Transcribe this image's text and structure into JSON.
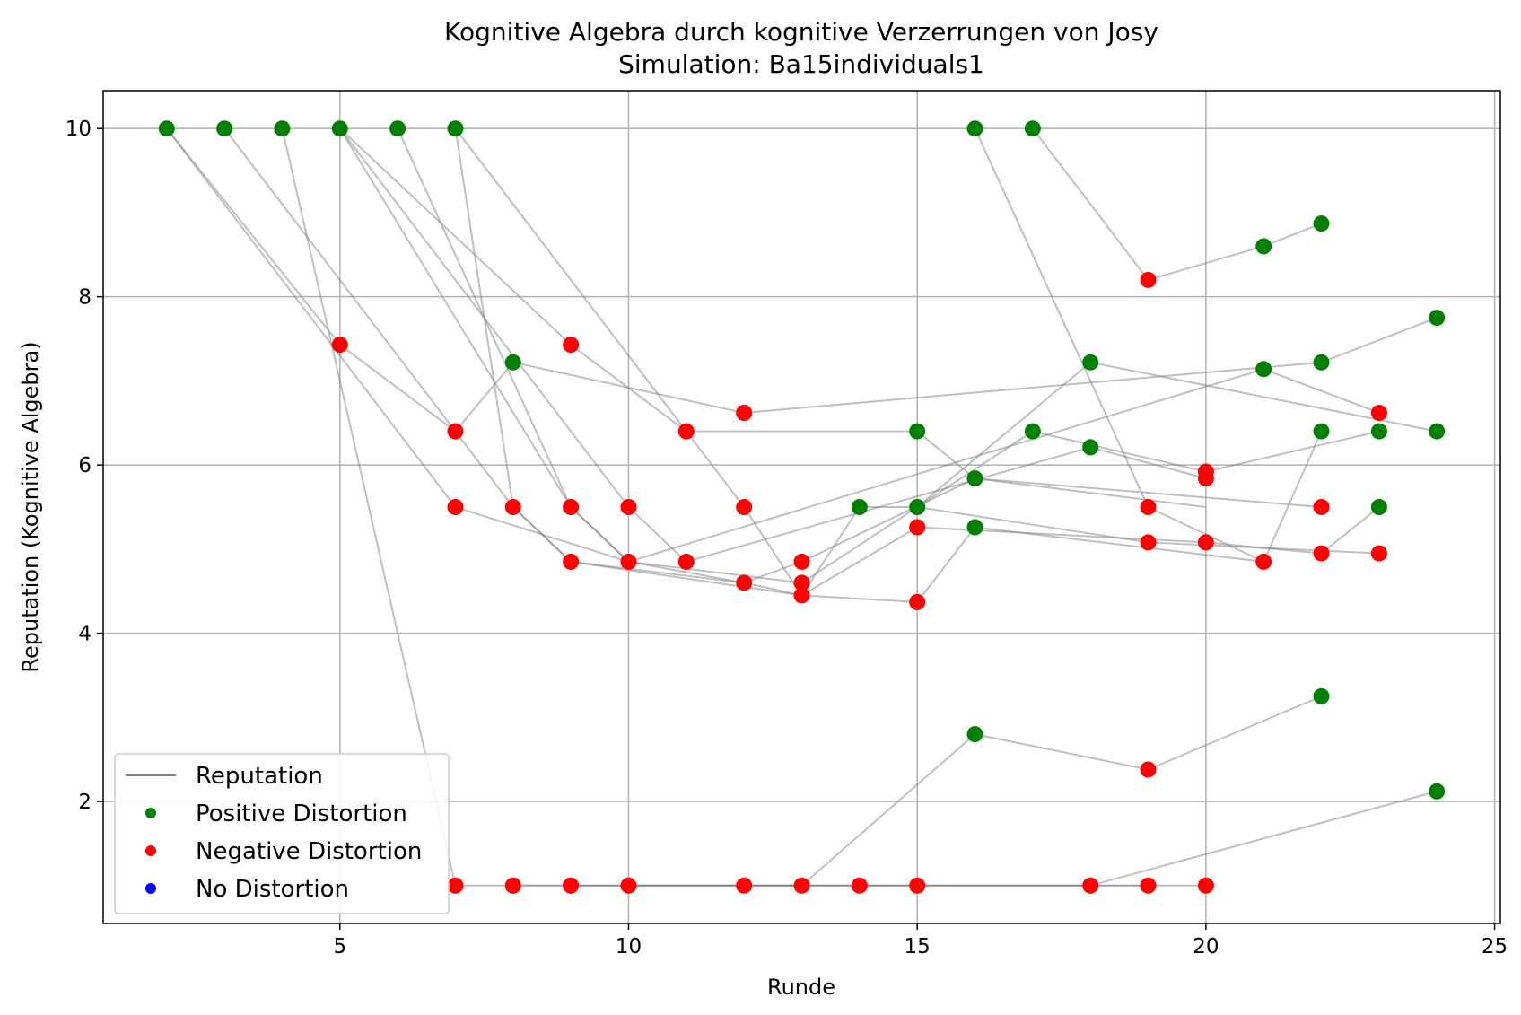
{
  "chart_data": {
    "type": "scatter",
    "title": "Kognitive Algebra durch kognitive Verzerrungen von Josy",
    "subtitle": "Simulation: Ba15individuals1",
    "xlabel": "Runde",
    "ylabel": "Reputation (Kognitive Algebra)",
    "xlim": [
      0.9,
      25.1
    ],
    "ylim": [
      0.55,
      10.45
    ],
    "x_ticks": [
      5,
      10,
      15,
      20,
      25
    ],
    "y_ticks": [
      2,
      4,
      6,
      8,
      10
    ],
    "x_tick_labels": [
      "5",
      "10",
      "15",
      "20",
      "25"
    ],
    "y_tick_labels": [
      "2",
      "4",
      "6",
      "8",
      "10"
    ],
    "grid": true,
    "legend_position": "lower-left",
    "legend": [
      {
        "label": "Reputation",
        "kind": "line",
        "color": "#808080"
      },
      {
        "label": "Positive Distortion",
        "kind": "marker",
        "color": "#008000"
      },
      {
        "label": "Negative Distortion",
        "kind": "marker",
        "color": "#ff0000"
      },
      {
        "label": "No Distortion",
        "kind": "marker",
        "color": "#0000ff"
      }
    ],
    "colors": {
      "positive": "#008000",
      "negative": "#ff0000",
      "none": "#0000ff",
      "line": "#808080"
    },
    "series": [
      {
        "points": [
          [
            2,
            10
          ],
          [
            5,
            7.43
          ],
          [
            7,
            6.4
          ],
          [
            8,
            7.22
          ],
          [
            12,
            6.62
          ],
          [
            22,
            7.22
          ],
          [
            24,
            7.75
          ]
        ]
      },
      {
        "points": [
          [
            2,
            10
          ],
          [
            7,
            5.5
          ],
          [
            10,
            4.85
          ],
          [
            21,
            7.14
          ],
          [
            23,
            6.62
          ]
        ]
      },
      {
        "points": [
          [
            3,
            10
          ],
          [
            8,
            5.5
          ],
          [
            9,
            4.85
          ],
          [
            13,
            4.45
          ],
          [
            14,
            5.5
          ],
          [
            15,
            5.5
          ],
          [
            19,
            5.08
          ],
          [
            23,
            4.95
          ]
        ]
      },
      {
        "points": [
          [
            4,
            10
          ],
          [
            7,
            1
          ],
          [
            13,
            1
          ],
          [
            16,
            2.8
          ],
          [
            19,
            2.38
          ],
          [
            22,
            3.25
          ]
        ]
      },
      {
        "points": [
          [
            5,
            10
          ],
          [
            9,
            5.5
          ],
          [
            10,
            4.85
          ],
          [
            12,
            4.6
          ],
          [
            13,
            4.85
          ],
          [
            16,
            5.84
          ],
          [
            20,
            5.5
          ]
        ]
      },
      {
        "points": [
          [
            5,
            10
          ],
          [
            10,
            5.5
          ],
          [
            11,
            4.85
          ],
          [
            18,
            6.21
          ],
          [
            20,
            5.84
          ]
        ]
      },
      {
        "points": [
          [
            5,
            10
          ],
          [
            9,
            7.43
          ],
          [
            11,
            6.4
          ],
          [
            15,
            6.4
          ],
          [
            16,
            5.84
          ],
          [
            22,
            5.5
          ]
        ]
      },
      {
        "points": [
          [
            6,
            10
          ],
          [
            9,
            5.5
          ],
          [
            10,
            4.85
          ],
          [
            13,
            4.6
          ],
          [
            17,
            6.4
          ],
          [
            20,
            5.92
          ],
          [
            23,
            6.4
          ]
        ]
      },
      {
        "points": [
          [
            7,
            10
          ],
          [
            8,
            5.5
          ],
          [
            9,
            4.85
          ],
          [
            12,
            4.6
          ],
          [
            13,
            4.45
          ],
          [
            15,
            5.26
          ],
          [
            20,
            5.08
          ],
          [
            22,
            4.95
          ],
          [
            23,
            5.5
          ]
        ]
      },
      {
        "points": [
          [
            7,
            10
          ],
          [
            12,
            5.5
          ],
          [
            13,
            4.45
          ],
          [
            15,
            4.37
          ],
          [
            16,
            5.26
          ],
          [
            21,
            4.85
          ],
          [
            22,
            6.4
          ]
        ]
      },
      {
        "points": [
          [
            8,
            1
          ],
          [
            18,
            1
          ],
          [
            24,
            2.12
          ]
        ]
      },
      {
        "points": [
          [
            9,
            1
          ],
          [
            14,
            1
          ],
          [
            20,
            1
          ]
        ]
      },
      {
        "points": [
          [
            10,
            1
          ],
          [
            15,
            1
          ],
          [
            19,
            1
          ]
        ]
      },
      {
        "points": [
          [
            15,
            5.5
          ],
          [
            18,
            7.22
          ],
          [
            24,
            6.4
          ]
        ]
      },
      {
        "points": [
          [
            16,
            10
          ],
          [
            19,
            5.5
          ],
          [
            21,
            4.85
          ]
        ]
      },
      {
        "points": [
          [
            17,
            10
          ],
          [
            19,
            8.2
          ],
          [
            21,
            8.6
          ],
          [
            22,
            8.87
          ]
        ]
      }
    ],
    "markers": [
      {
        "x": 2,
        "y": 10,
        "d": "pos"
      },
      {
        "x": 3,
        "y": 10,
        "d": "pos"
      },
      {
        "x": 4,
        "y": 10,
        "d": "pos"
      },
      {
        "x": 5,
        "y": 10,
        "d": "pos"
      },
      {
        "x": 6,
        "y": 10,
        "d": "pos"
      },
      {
        "x": 7,
        "y": 10,
        "d": "pos"
      },
      {
        "x": 16,
        "y": 10,
        "d": "pos"
      },
      {
        "x": 17,
        "y": 10,
        "d": "pos"
      },
      {
        "x": 22,
        "y": 8.87,
        "d": "pos"
      },
      {
        "x": 21,
        "y": 8.6,
        "d": "pos"
      },
      {
        "x": 19,
        "y": 8.2,
        "d": "neg"
      },
      {
        "x": 24,
        "y": 7.75,
        "d": "pos"
      },
      {
        "x": 5,
        "y": 7.43,
        "d": "neg"
      },
      {
        "x": 9,
        "y": 7.43,
        "d": "neg"
      },
      {
        "x": 8,
        "y": 7.22,
        "d": "pos"
      },
      {
        "x": 18,
        "y": 7.22,
        "d": "pos"
      },
      {
        "x": 22,
        "y": 7.22,
        "d": "pos"
      },
      {
        "x": 21,
        "y": 7.14,
        "d": "pos"
      },
      {
        "x": 12,
        "y": 6.62,
        "d": "neg"
      },
      {
        "x": 23,
        "y": 6.62,
        "d": "neg"
      },
      {
        "x": 7,
        "y": 6.4,
        "d": "neg"
      },
      {
        "x": 11,
        "y": 6.4,
        "d": "neg"
      },
      {
        "x": 15,
        "y": 6.4,
        "d": "pos"
      },
      {
        "x": 17,
        "y": 6.4,
        "d": "pos"
      },
      {
        "x": 22,
        "y": 6.4,
        "d": "pos"
      },
      {
        "x": 23,
        "y": 6.4,
        "d": "pos"
      },
      {
        "x": 24,
        "y": 6.4,
        "d": "pos"
      },
      {
        "x": 18,
        "y": 6.21,
        "d": "pos"
      },
      {
        "x": 20,
        "y": 5.92,
        "d": "neg"
      },
      {
        "x": 16,
        "y": 5.84,
        "d": "pos"
      },
      {
        "x": 20,
        "y": 5.84,
        "d": "neg"
      },
      {
        "x": 7,
        "y": 5.5,
        "d": "neg"
      },
      {
        "x": 8,
        "y": 5.5,
        "d": "neg"
      },
      {
        "x": 9,
        "y": 5.5,
        "d": "neg"
      },
      {
        "x": 10,
        "y": 5.5,
        "d": "neg"
      },
      {
        "x": 12,
        "y": 5.5,
        "d": "neg"
      },
      {
        "x": 14,
        "y": 5.5,
        "d": "pos"
      },
      {
        "x": 15,
        "y": 5.5,
        "d": "pos"
      },
      {
        "x": 19,
        "y": 5.5,
        "d": "neg"
      },
      {
        "x": 22,
        "y": 5.5,
        "d": "neg"
      },
      {
        "x": 23,
        "y": 5.5,
        "d": "pos"
      },
      {
        "x": 15,
        "y": 5.26,
        "d": "neg"
      },
      {
        "x": 16,
        "y": 5.26,
        "d": "pos"
      },
      {
        "x": 19,
        "y": 5.08,
        "d": "neg"
      },
      {
        "x": 20,
        "y": 5.08,
        "d": "neg"
      },
      {
        "x": 22,
        "y": 4.95,
        "d": "neg"
      },
      {
        "x": 23,
        "y": 4.95,
        "d": "neg"
      },
      {
        "x": 9,
        "y": 4.85,
        "d": "neg"
      },
      {
        "x": 10,
        "y": 4.85,
        "d": "neg"
      },
      {
        "x": 11,
        "y": 4.85,
        "d": "neg"
      },
      {
        "x": 13,
        "y": 4.85,
        "d": "neg"
      },
      {
        "x": 21,
        "y": 4.85,
        "d": "neg"
      },
      {
        "x": 12,
        "y": 4.6,
        "d": "neg"
      },
      {
        "x": 13,
        "y": 4.6,
        "d": "neg"
      },
      {
        "x": 13,
        "y": 4.45,
        "d": "neg"
      },
      {
        "x": 15,
        "y": 4.37,
        "d": "neg"
      },
      {
        "x": 22,
        "y": 3.25,
        "d": "pos"
      },
      {
        "x": 16,
        "y": 2.8,
        "d": "pos"
      },
      {
        "x": 19,
        "y": 2.38,
        "d": "neg"
      },
      {
        "x": 24,
        "y": 2.12,
        "d": "pos"
      },
      {
        "x": 7,
        "y": 1,
        "d": "neg"
      },
      {
        "x": 8,
        "y": 1,
        "d": "neg"
      },
      {
        "x": 9,
        "y": 1,
        "d": "neg"
      },
      {
        "x": 10,
        "y": 1,
        "d": "neg"
      },
      {
        "x": 12,
        "y": 1,
        "d": "neg"
      },
      {
        "x": 13,
        "y": 1,
        "d": "neg"
      },
      {
        "x": 14,
        "y": 1,
        "d": "neg"
      },
      {
        "x": 15,
        "y": 1,
        "d": "neg"
      },
      {
        "x": 18,
        "y": 1,
        "d": "neg"
      },
      {
        "x": 19,
        "y": 1,
        "d": "neg"
      },
      {
        "x": 20,
        "y": 1,
        "d": "neg"
      }
    ]
  }
}
